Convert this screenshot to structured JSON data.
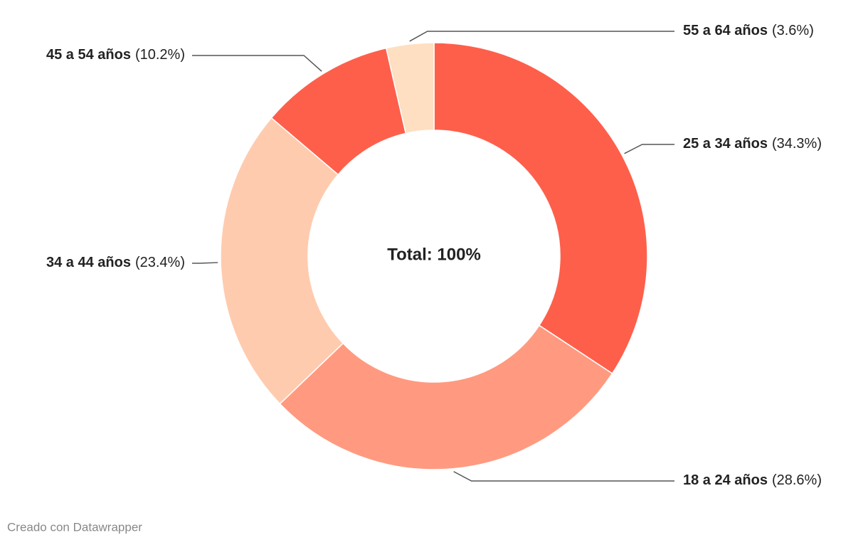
{
  "chart_data": {
    "type": "donut",
    "center_label": "Total: 100%",
    "credit": "Creado con Datawrapper",
    "categories": [
      "25 a 34 años",
      "18 a 24 años",
      "34 a 44 años",
      "45 a 54 años",
      "55 a 64 años"
    ],
    "values": [
      34.3,
      28.6,
      23.4,
      10.2,
      3.6
    ],
    "value_labels": [
      "(34.3%)",
      "(28.6%)",
      "(23.4%)",
      "(10.2%)",
      "(3.6%)"
    ],
    "colors": [
      "#fe5f4b",
      "#ff9a80",
      "#ffcbae",
      "#fe5f4b",
      "#ffdfc1"
    ]
  }
}
